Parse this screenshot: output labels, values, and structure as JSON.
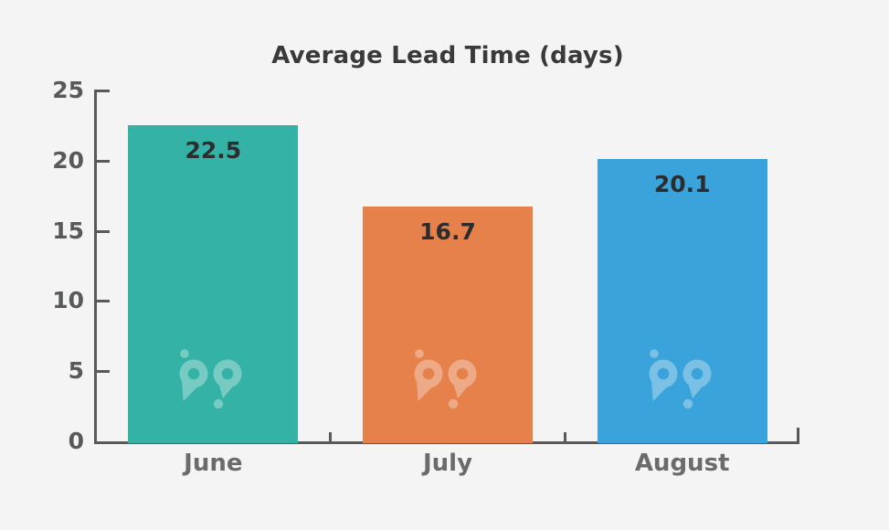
{
  "chart_data": {
    "type": "bar",
    "title": "Average Lead Time (days)",
    "categories": [
      "June",
      "July",
      "August"
    ],
    "values": [
      22.5,
      16.7,
      20.1
    ],
    "value_labels": [
      "22.5",
      "16.7",
      "20.1"
    ],
    "bar_colors": [
      "#35B2A6",
      "#E6814B",
      "#3AA3DB"
    ],
    "xlabel": "",
    "ylabel": "",
    "ylim": [
      0,
      25
    ],
    "yticks": [
      0,
      5,
      10,
      15,
      20,
      25
    ],
    "ytick_labels": [
      "0",
      "5",
      "10",
      "15",
      "20",
      "25"
    ],
    "grid": false,
    "legend": "none",
    "bar_value_label_position": "inside-top",
    "tick_style": "inward"
  },
  "watermark": {
    "icon": "bp-logo",
    "placement": "inside each bar, lower area",
    "color": "#FFFFFF",
    "opacity": 0.33
  },
  "colors": {
    "background": "#F4F4F4",
    "axis": "#58595B",
    "title_text": "#3A3A3A",
    "value_label_text": "#2D2D2D",
    "tick_label_text": "#58595B",
    "category_label_text": "#6B6B6B"
  }
}
